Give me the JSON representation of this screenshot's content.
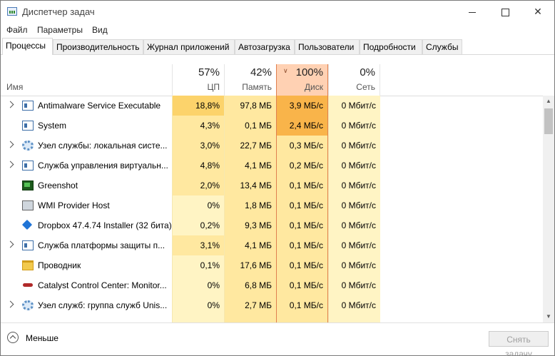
{
  "window": {
    "title": "Диспетчер задач"
  },
  "menu": [
    "Файл",
    "Параметры",
    "Вид"
  ],
  "tabs": [
    "Процессы",
    "Производительность",
    "Журнал приложений",
    "Автозагрузка",
    "Пользователи",
    "Подробности",
    "Службы"
  ],
  "active_tab": "Процессы",
  "columns": {
    "name": "Имя",
    "cpu": {
      "percent": "57%",
      "label": "ЦП"
    },
    "memory": {
      "percent": "42%",
      "label": "Память"
    },
    "disk": {
      "percent": "100%",
      "label": "Диск",
      "sorted": true
    },
    "network": {
      "percent": "0%",
      "label": "Сеть"
    }
  },
  "colors": {
    "heat_light": "#fff4c4",
    "heat_medium": "#ffe8a0",
    "heat_strong": "#fcd36b",
    "heat_hot": "#f9b44a",
    "sort_column": "#ffd1b3"
  },
  "processes": [
    {
      "name": "Antimalware Service Executable",
      "icon": "window-icon",
      "expandable": true,
      "cpu": "18,8%",
      "memory": "97,8 МБ",
      "disk": "3,9 МБ/с",
      "network": "0 Мбит/с",
      "cpu_heat": "strong",
      "mem_heat": "medium",
      "disk_heat": "hot"
    },
    {
      "name": "System",
      "icon": "window-icon",
      "expandable": false,
      "cpu": "4,3%",
      "memory": "0,1 МБ",
      "disk": "2,4 МБ/с",
      "network": "0 Мбит/с",
      "cpu_heat": "medium",
      "mem_heat": "medium",
      "disk_heat": "hot"
    },
    {
      "name": "Узел службы: локальная систе...",
      "icon": "gear-icon",
      "expandable": true,
      "cpu": "3,0%",
      "memory": "22,7 МБ",
      "disk": "0,3 МБ/с",
      "network": "0 Мбит/с",
      "cpu_heat": "medium",
      "mem_heat": "medium",
      "disk_heat": "medium"
    },
    {
      "name": "Служба управления виртуальн...",
      "icon": "window-icon",
      "expandable": true,
      "cpu": "4,8%",
      "memory": "4,1 МБ",
      "disk": "0,2 МБ/с",
      "network": "0 Мбит/с",
      "cpu_heat": "medium",
      "mem_heat": "medium",
      "disk_heat": "medium"
    },
    {
      "name": "Greenshot",
      "icon": "greenshot-icon",
      "expandable": false,
      "cpu": "2,0%",
      "memory": "13,4 МБ",
      "disk": "0,1 МБ/с",
      "network": "0 Мбит/с",
      "cpu_heat": "medium",
      "mem_heat": "medium",
      "disk_heat": "medium"
    },
    {
      "name": "WMI Provider Host",
      "icon": "wmi-icon",
      "expandable": false,
      "cpu": "0%",
      "memory": "1,8 МБ",
      "disk": "0,1 МБ/с",
      "network": "0 Мбит/с",
      "cpu_heat": "light",
      "mem_heat": "medium",
      "disk_heat": "medium"
    },
    {
      "name": "Dropbox 47.4.74 Installer (32 бита)",
      "icon": "dropbox-icon",
      "expandable": false,
      "cpu": "0,2%",
      "memory": "9,3 МБ",
      "disk": "0,1 МБ/с",
      "network": "0 Мбит/с",
      "cpu_heat": "light",
      "mem_heat": "medium",
      "disk_heat": "medium"
    },
    {
      "name": "Служба платформы защиты п...",
      "icon": "window-icon",
      "expandable": true,
      "cpu": "3,1%",
      "memory": "4,1 МБ",
      "disk": "0,1 МБ/с",
      "network": "0 Мбит/с",
      "cpu_heat": "medium",
      "mem_heat": "medium",
      "disk_heat": "medium"
    },
    {
      "name": "Проводник",
      "icon": "folder-icon",
      "expandable": false,
      "cpu": "0,1%",
      "memory": "17,6 МБ",
      "disk": "0,1 МБ/с",
      "network": "0 Мбит/с",
      "cpu_heat": "light",
      "mem_heat": "medium",
      "disk_heat": "medium"
    },
    {
      "name": "Catalyst Control Center: Monitor...",
      "icon": "catalyst-icon",
      "expandable": false,
      "cpu": "0%",
      "memory": "6,8 МБ",
      "disk": "0,1 МБ/с",
      "network": "0 Мбит/с",
      "cpu_heat": "light",
      "mem_heat": "medium",
      "disk_heat": "medium"
    },
    {
      "name": "Узел служб: группа служб Unis...",
      "icon": "gear-icon",
      "expandable": true,
      "cpu": "0%",
      "memory": "2,7 МБ",
      "disk": "0,1 МБ/с",
      "network": "0 Мбит/с",
      "cpu_heat": "light",
      "mem_heat": "medium",
      "disk_heat": "medium"
    }
  ],
  "footer": {
    "fewer_details": "Меньше",
    "end_task": "Снять задачу"
  }
}
